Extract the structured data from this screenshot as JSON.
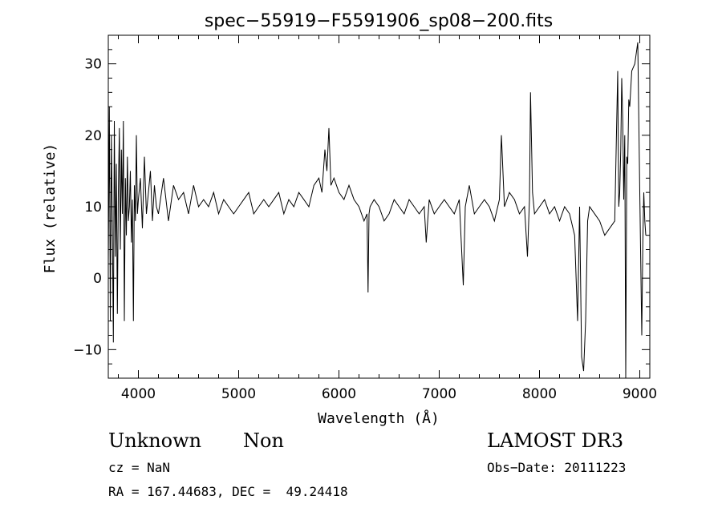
{
  "chart_data": {
    "type": "line",
    "title": "spec−55919−F5591906_sp08−200.fits",
    "xlabel": "Wavelength (Å)",
    "ylabel": "Flux (relative)",
    "xlim": [
      3700,
      9100
    ],
    "ylim": [
      -14,
      34
    ],
    "xticks": [
      4000,
      5000,
      6000,
      7000,
      8000,
      9000
    ],
    "xtick_labels": [
      "4000",
      "5000",
      "6000",
      "7000",
      "8000",
      "9000"
    ],
    "yticks": [
      -10,
      0,
      10,
      20,
      30
    ],
    "ytick_labels": [
      "−10",
      "0",
      "10",
      "20",
      "30"
    ],
    "grid": false,
    "legend": "none",
    "line_color": "#000000",
    "series": [
      {
        "x": [
          3700,
          3710,
          3720,
          3730,
          3740,
          3750,
          3760,
          3770,
          3780,
          3790,
          3800,
          3810,
          3820,
          3830,
          3840,
          3850,
          3860,
          3870,
          3880,
          3890,
          3900,
          3910,
          3920,
          3930,
          3940,
          3950,
          3960,
          3970,
          3980,
          3990,
          4000,
          4020,
          4040,
          4060,
          4080,
          4100,
          4120,
          4140,
          4160,
          4180,
          4200,
          4250,
          4300,
          4350,
          4400,
          4450,
          4500,
          4550,
          4600,
          4650,
          4700,
          4750,
          4800,
          4850,
          4900,
          4950,
          5000,
          5050,
          5100,
          5150,
          5200,
          5250,
          5300,
          5350,
          5400,
          5450,
          5500,
          5550,
          5600,
          5650,
          5700,
          5750,
          5800,
          5830,
          5860,
          5880,
          5900,
          5920,
          5950,
          6000,
          6050,
          6100,
          6150,
          6200,
          6250,
          6280,
          6290,
          6300,
          6310,
          6350,
          6400,
          6450,
          6500,
          6550,
          6600,
          6650,
          6700,
          6750,
          6800,
          6850,
          6870,
          6900,
          6950,
          7000,
          7050,
          7100,
          7150,
          7200,
          7240,
          7260,
          7300,
          7350,
          7400,
          7450,
          7500,
          7550,
          7600,
          7620,
          7650,
          7700,
          7750,
          7800,
          7850,
          7880,
          7900,
          7910,
          7930,
          7950,
          8000,
          8050,
          8100,
          8150,
          8200,
          8250,
          8300,
          8350,
          8380,
          8400,
          8420,
          8440,
          8460,
          8480,
          8500,
          8550,
          8600,
          8650,
          8700,
          8750,
          8780,
          8790,
          8800,
          8810,
          8820,
          8830,
          8840,
          8850,
          8860,
          8870,
          8880,
          8890,
          8900,
          8920,
          8950,
          8980,
          9000,
          9020,
          9030,
          9040,
          9050,
          9060
        ],
        "y": [
          2,
          24,
          -6,
          20,
          8,
          -9,
          22,
          3,
          16,
          -5,
          12,
          21,
          4,
          18,
          9,
          22,
          -6,
          14,
          6,
          17,
          8,
          10,
          15,
          5,
          11,
          -6,
          13,
          8,
          20,
          9,
          11,
          14,
          7,
          17,
          9,
          12,
          15,
          8,
          13,
          10,
          9,
          14,
          8,
          13,
          11,
          12,
          9,
          13,
          10,
          11,
          10,
          12,
          9,
          11,
          10,
          9,
          10,
          11,
          12,
          9,
          10,
          11,
          10,
          11,
          12,
          9,
          11,
          10,
          12,
          11,
          10,
          13,
          14,
          12,
          18,
          15,
          21,
          13,
          14,
          12,
          11,
          13,
          11,
          10,
          8,
          9,
          -2,
          9,
          10,
          11,
          10,
          8,
          9,
          11,
          10,
          9,
          11,
          10,
          9,
          10,
          5,
          11,
          9,
          10,
          11,
          10,
          9,
          11,
          -1,
          10,
          13,
          9,
          10,
          11,
          10,
          8,
          11,
          20,
          10,
          12,
          11,
          9,
          10,
          3,
          11,
          26,
          12,
          9,
          10,
          11,
          9,
          10,
          8,
          10,
          9,
          6,
          -6,
          10,
          -11,
          -13,
          -6,
          8,
          10,
          9,
          8,
          6,
          7,
          8,
          29,
          10,
          12,
          18,
          28,
          22,
          11,
          20,
          -14,
          17,
          16,
          25,
          24,
          29,
          30,
          33,
          12,
          -8,
          5,
          12,
          8,
          6
        ]
      }
    ],
    "annotations": {
      "object_class": "Unknown",
      "object_subclass": "Non",
      "cz": "cz = NaN",
      "coords": "RA = 167.44683, DEC =  49.24418",
      "survey": "LAMOST DR3",
      "obs_date": "Obs−Date: 20111223"
    }
  }
}
